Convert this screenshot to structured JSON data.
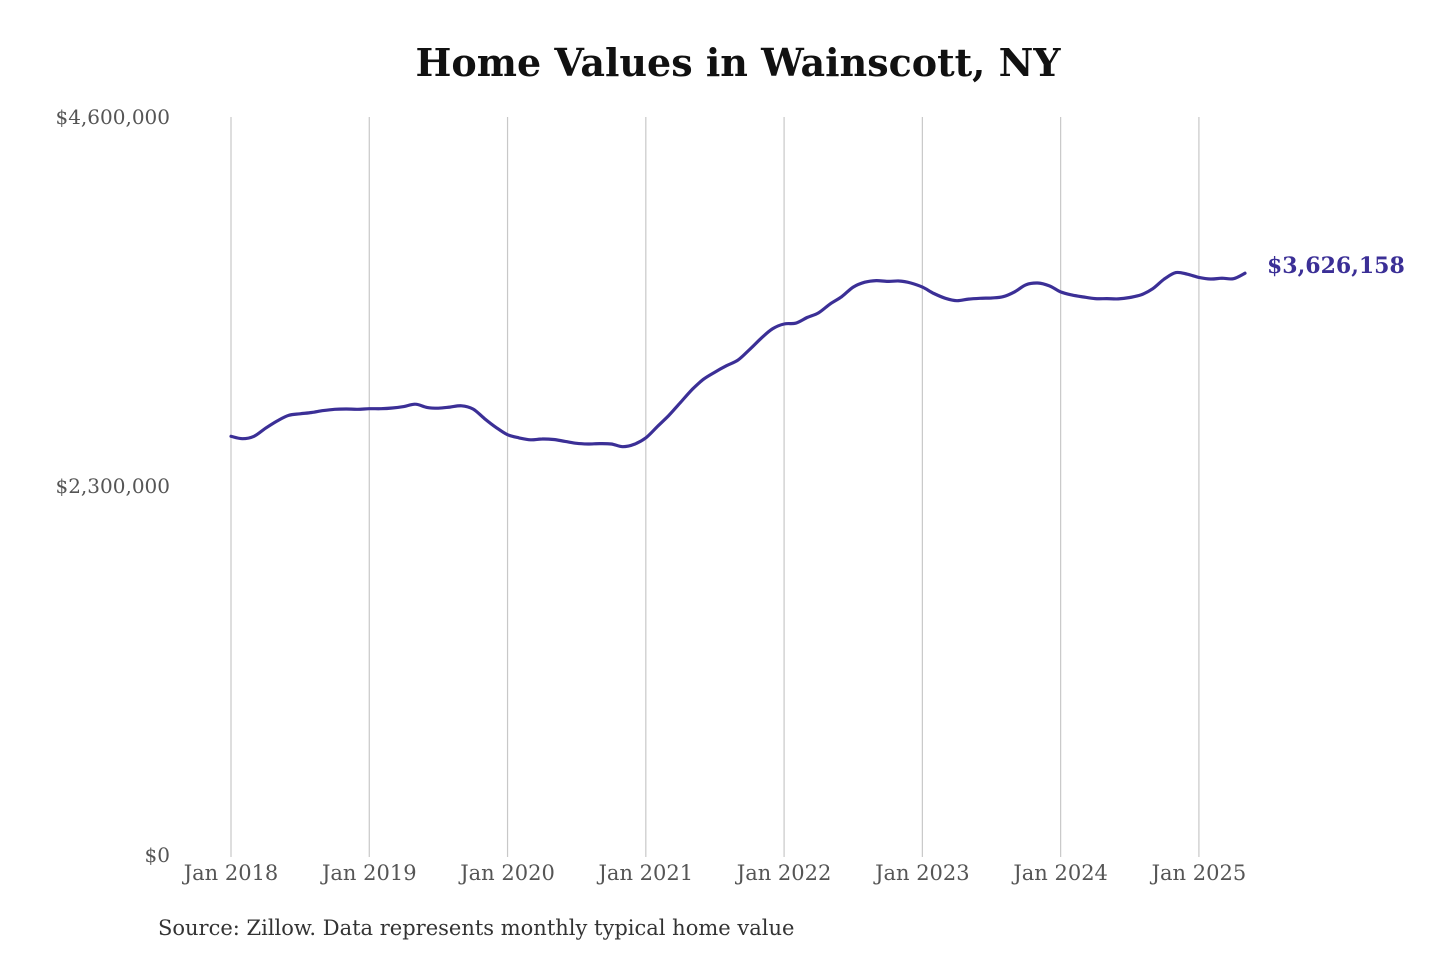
{
  "chart_data": {
    "type": "line",
    "title": "Home Values in Wainscott, NY",
    "source": "Source: Zillow. Data represents monthly typical home value",
    "xlabel": "",
    "ylabel": "",
    "ylim": [
      0,
      4600000
    ],
    "xlim": [
      "2018-01",
      "2025-05"
    ],
    "grid": "vertical",
    "legend": "none",
    "line_color": "#3b2f96",
    "y_ticks": [
      {
        "value": 4600000,
        "label": "$4,600,000"
      },
      {
        "value": 2300000,
        "label": "$2,300,000"
      },
      {
        "value": 0,
        "label": "$0"
      }
    ],
    "x_ticks": [
      {
        "value": "2018-01",
        "label": "Jan 2018"
      },
      {
        "value": "2019-01",
        "label": "Jan 2019"
      },
      {
        "value": "2020-01",
        "label": "Jan 2020"
      },
      {
        "value": "2021-01",
        "label": "Jan 2021"
      },
      {
        "value": "2022-01",
        "label": "Jan 2022"
      },
      {
        "value": "2023-01",
        "label": "Jan 2023"
      },
      {
        "value": "2024-01",
        "label": "Jan 2024"
      },
      {
        "value": "2025-01",
        "label": "Jan 2025"
      }
    ],
    "end_label": "$3,626,158",
    "series": [
      {
        "x": [
          "2018-01",
          "2018-02",
          "2018-03",
          "2018-04",
          "2018-05",
          "2018-06",
          "2018-07",
          "2018-08",
          "2018-09",
          "2018-10",
          "2018-11",
          "2018-12",
          "2019-01",
          "2019-02",
          "2019-03",
          "2019-04",
          "2019-05",
          "2019-06",
          "2019-07",
          "2019-08",
          "2019-09",
          "2019-10",
          "2019-11",
          "2019-12",
          "2020-01",
          "2020-02",
          "2020-03",
          "2020-04",
          "2020-05",
          "2020-06",
          "2020-07",
          "2020-08",
          "2020-09",
          "2020-10",
          "2020-11",
          "2020-12",
          "2021-01",
          "2021-02",
          "2021-03",
          "2021-04",
          "2021-05",
          "2021-06",
          "2021-07",
          "2021-08",
          "2021-09",
          "2021-10",
          "2021-11",
          "2021-12",
          "2022-01",
          "2022-02",
          "2022-03",
          "2022-04",
          "2022-05",
          "2022-06",
          "2022-07",
          "2022-08",
          "2022-09",
          "2022-10",
          "2022-11",
          "2022-12",
          "2023-01",
          "2023-02",
          "2023-03",
          "2023-04",
          "2023-05",
          "2023-06",
          "2023-07",
          "2023-08",
          "2023-09",
          "2023-10",
          "2023-11",
          "2023-12",
          "2024-01",
          "2024-02",
          "2024-03",
          "2024-04",
          "2024-05",
          "2024-06",
          "2024-07",
          "2024-08",
          "2024-09",
          "2024-10",
          "2024-11",
          "2024-12",
          "2025-01",
          "2025-02",
          "2025-03",
          "2025-04",
          "2025-05"
        ],
        "values": [
          2610000,
          2595000,
          2610000,
          2660000,
          2705000,
          2740000,
          2750000,
          2758000,
          2770000,
          2778000,
          2780000,
          2778000,
          2782000,
          2782000,
          2786000,
          2795000,
          2810000,
          2790000,
          2785000,
          2792000,
          2800000,
          2780000,
          2720000,
          2665000,
          2620000,
          2600000,
          2588000,
          2593000,
          2590000,
          2578000,
          2566000,
          2562000,
          2564000,
          2562000,
          2545000,
          2560000,
          2600000,
          2670000,
          2740000,
          2820000,
          2900000,
          2965000,
          3010000,
          3050000,
          3085000,
          3150000,
          3220000,
          3280000,
          3310000,
          3315000,
          3350000,
          3380000,
          3435000,
          3480000,
          3540000,
          3570000,
          3580000,
          3575000,
          3578000,
          3565000,
          3540000,
          3500000,
          3470000,
          3455000,
          3465000,
          3470000,
          3472000,
          3480000,
          3510000,
          3555000,
          3565000,
          3548000,
          3510000,
          3490000,
          3478000,
          3468000,
          3468000,
          3466000,
          3475000,
          3492000,
          3530000,
          3590000,
          3630000,
          3620000,
          3600000,
          3590000,
          3595000,
          3592000,
          3626158
        ]
      }
    ]
  }
}
